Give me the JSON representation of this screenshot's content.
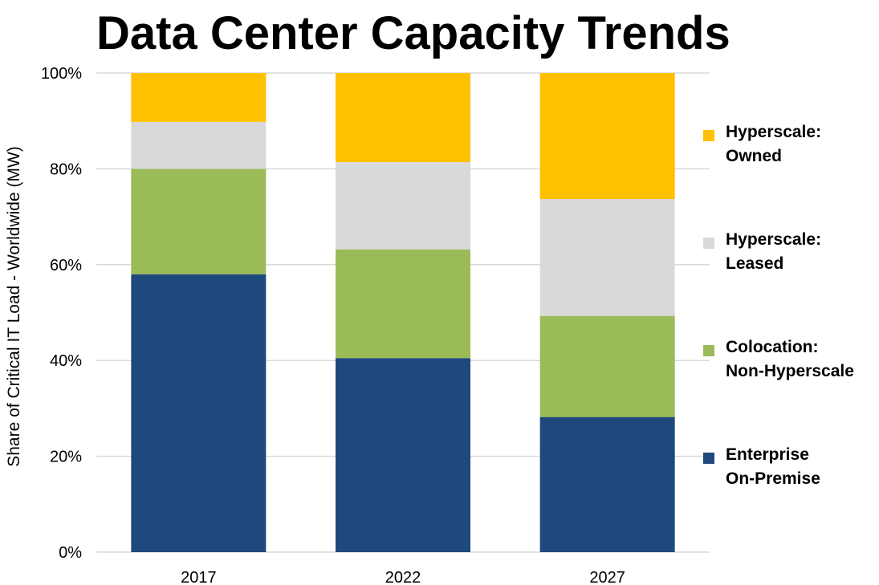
{
  "chart_data": {
    "type": "bar",
    "stacked": true,
    "title": "Data Center Capacity Trends",
    "ylabel": "Share of Critical IT Load - Worldwide (MW)",
    "xlabel": "",
    "ylim": [
      0,
      100
    ],
    "yticks": [
      "0%",
      "20%",
      "40%",
      "60%",
      "80%",
      "100%"
    ],
    "grid": true,
    "legend_position": "right",
    "categories": [
      "2017",
      "2022",
      "2027"
    ],
    "series": [
      {
        "name": "Enterprise On-Premise",
        "lines": [
          "Enterprise",
          "On-Premise"
        ],
        "color": "#1f497d",
        "values": [
          58,
          40.5,
          28.2
        ]
      },
      {
        "name": "Colocation: Non-Hyperscale",
        "lines": [
          "Colocation:",
          "Non-Hyperscale"
        ],
        "color": "#9bbb59",
        "values": [
          22,
          22.7,
          21.1
        ]
      },
      {
        "name": "Hyperscale: Leased",
        "lines": [
          "Hyperscale:",
          "Leased"
        ],
        "color": "#d9d9d9",
        "values": [
          9.8,
          18.2,
          24.4
        ]
      },
      {
        "name": "Hyperscale: Owned",
        "lines": [
          "Hyperscale:",
          "Owned"
        ],
        "color": "#ffc000",
        "values": [
          10.2,
          18.6,
          26.3
        ]
      }
    ]
  }
}
